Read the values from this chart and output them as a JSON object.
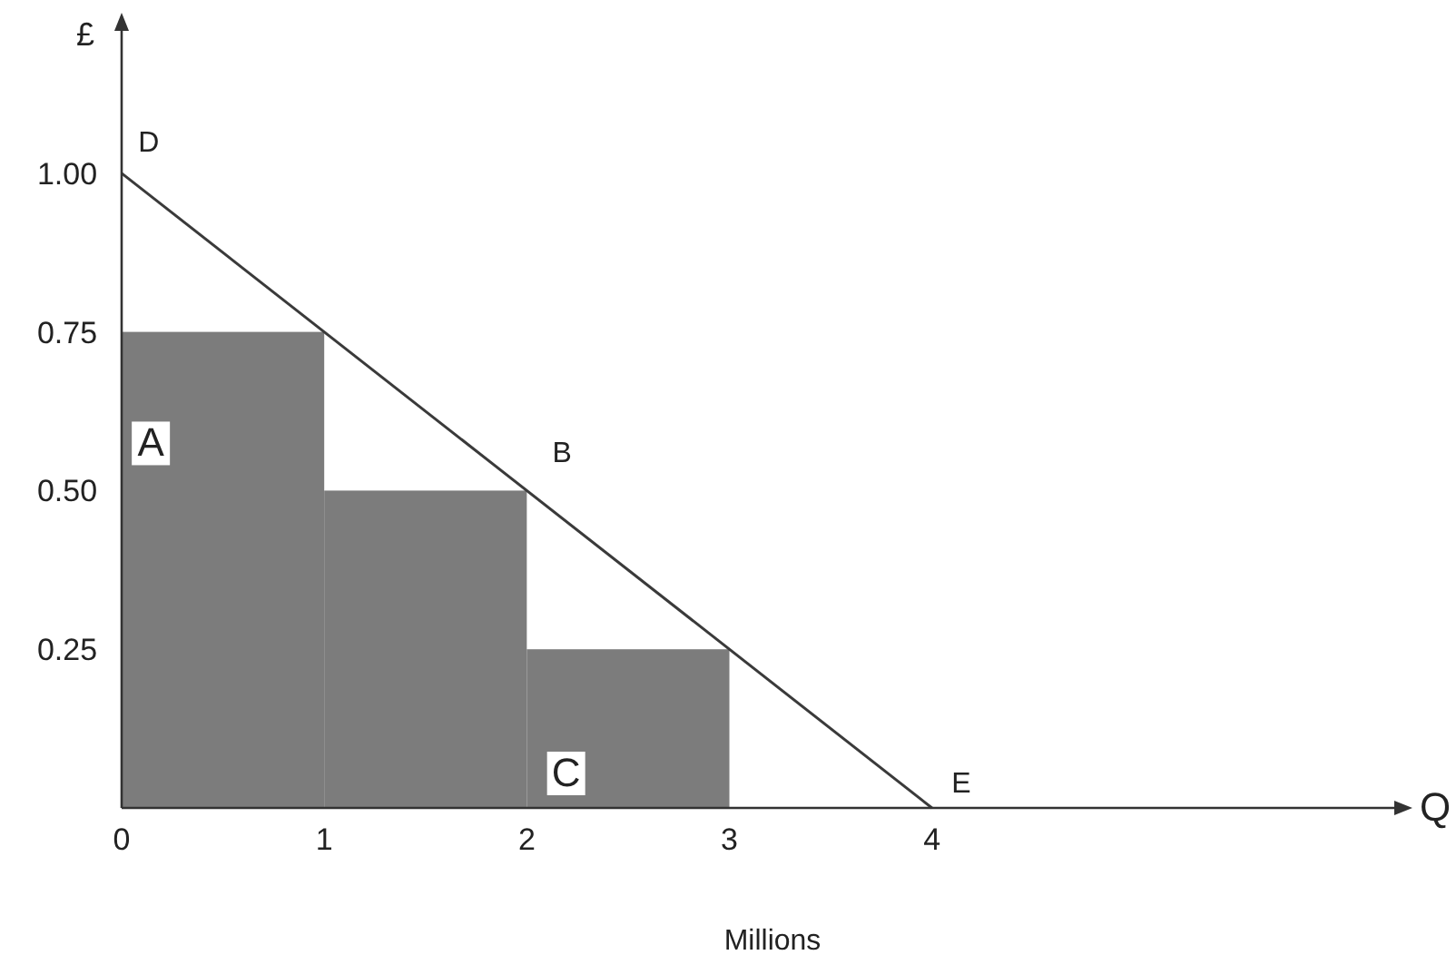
{
  "chart_data": {
    "type": "bar",
    "xlabel": "Q",
    "ylabel": "£",
    "x": [
      0.5,
      1.5,
      2.5
    ],
    "series": [
      {
        "color": "#7c7c7c",
        "values": [
          0.75,
          0.5,
          0.25
        ]
      },
      {
        "type": "line",
        "color": "#3a3a3a",
        "x": [
          0,
          4
        ],
        "values": [
          1,
          0
        ]
      }
    ],
    "xlim": [
      0,
      6.3
    ],
    "xticks": [
      0,
      1,
      2,
      3,
      4
    ],
    "ylim": [
      0,
      1.23
    ],
    "yticks": [
      {
        "value": 0.25,
        "label": "0.25"
      },
      {
        "value": 0.5,
        "label": "0.50"
      },
      {
        "value": 0.75,
        "label": "0.75"
      },
      {
        "value": 1,
        "label": "1.00"
      }
    ],
    "grid": false,
    "annotations": [
      "D",
      "B",
      "E",
      "A",
      "C",
      "Millions"
    ]
  }
}
